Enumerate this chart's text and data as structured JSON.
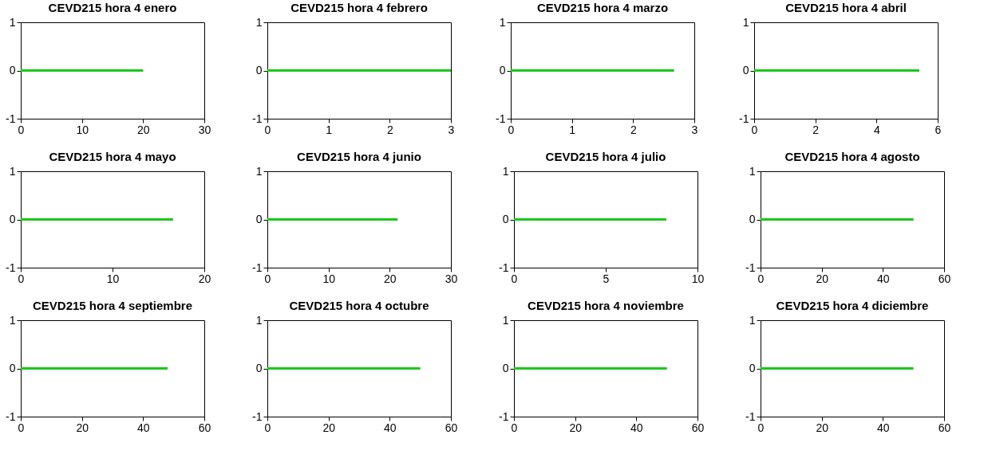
{
  "chart_data": [
    {
      "type": "line",
      "title": "CEVD215 hora 4 enero",
      "series": [
        {
          "color": "#19c819",
          "x": [
            0,
            20
          ],
          "values": [
            0,
            0
          ]
        }
      ],
      "xlim": [
        0,
        30
      ],
      "xticks": [
        0,
        10,
        20,
        30
      ],
      "ylim": [
        -1,
        1
      ],
      "yticks": [
        -1,
        0,
        1
      ],
      "grid": false
    },
    {
      "type": "line",
      "title": "CEVD215 hora 4 febrero",
      "series": [
        {
          "color": "#19c819",
          "x": [
            0,
            3
          ],
          "values": [
            0,
            0
          ]
        }
      ],
      "xlim": [
        0,
        3
      ],
      "xticks": [
        0,
        1,
        2,
        3
      ],
      "ylim": [
        -1,
        1
      ],
      "yticks": [
        -1,
        0,
        1
      ],
      "grid": false
    },
    {
      "type": "line",
      "title": "CEVD215 hora 4 marzo",
      "series": [
        {
          "color": "#19c819",
          "x": [
            0,
            2.67
          ],
          "values": [
            0,
            0
          ]
        }
      ],
      "xlim": [
        0,
        3
      ],
      "xticks": [
        0,
        1,
        2,
        3
      ],
      "ylim": [
        -1,
        1
      ],
      "yticks": [
        -1,
        0,
        1
      ],
      "grid": false
    },
    {
      "type": "line",
      "title": "CEVD215 hora 4 abril",
      "series": [
        {
          "color": "#19c819",
          "x": [
            0,
            5.4
          ],
          "values": [
            0,
            0
          ]
        }
      ],
      "xlim": [
        0,
        6
      ],
      "xticks": [
        0,
        2,
        4,
        6
      ],
      "ylim": [
        -1,
        1
      ],
      "yticks": [
        -1,
        0,
        1
      ],
      "grid": false
    },
    {
      "type": "line",
      "title": "CEVD215 hora 4 mayo",
      "series": [
        {
          "color": "#19c819",
          "x": [
            0,
            16.6
          ],
          "values": [
            0,
            0
          ]
        }
      ],
      "xlim": [
        0,
        20
      ],
      "xticks": [
        0,
        10,
        20
      ],
      "ylim": [
        -1,
        1
      ],
      "yticks": [
        -1,
        0,
        1
      ],
      "grid": false
    },
    {
      "type": "line",
      "title": "CEVD215 hora 4 junio",
      "series": [
        {
          "color": "#19c819",
          "x": [
            0,
            21.3
          ],
          "values": [
            0,
            0
          ]
        }
      ],
      "xlim": [
        0,
        30
      ],
      "xticks": [
        0,
        10,
        20,
        30
      ],
      "ylim": [
        -1,
        1
      ],
      "yticks": [
        -1,
        0,
        1
      ],
      "grid": false
    },
    {
      "type": "line",
      "title": "CEVD215 hora 4 julio",
      "series": [
        {
          "color": "#19c819",
          "x": [
            0,
            8.3
          ],
          "values": [
            0,
            0
          ]
        }
      ],
      "xlim": [
        0,
        10
      ],
      "xticks": [
        0,
        5,
        10
      ],
      "ylim": [
        -1,
        1
      ],
      "yticks": [
        -1,
        0,
        1
      ],
      "grid": false
    },
    {
      "type": "line",
      "title": "CEVD215 hora 4 agosto",
      "series": [
        {
          "color": "#19c819",
          "x": [
            0,
            50
          ],
          "values": [
            0,
            0
          ]
        }
      ],
      "xlim": [
        0,
        60
      ],
      "xticks": [
        0,
        20,
        40,
        60
      ],
      "ylim": [
        -1,
        1
      ],
      "yticks": [
        -1,
        0,
        1
      ],
      "grid": false
    },
    {
      "type": "line",
      "title": "CEVD215 hora 4 septiembre",
      "series": [
        {
          "color": "#19c819",
          "x": [
            0,
            48
          ],
          "values": [
            0,
            0
          ]
        }
      ],
      "xlim": [
        0,
        60
      ],
      "xticks": [
        0,
        20,
        40,
        60
      ],
      "ylim": [
        -1,
        1
      ],
      "yticks": [
        -1,
        0,
        1
      ],
      "grid": false
    },
    {
      "type": "line",
      "title": "CEVD215 hora 4 octubre",
      "series": [
        {
          "color": "#19c819",
          "x": [
            0,
            50
          ],
          "values": [
            0,
            0
          ]
        }
      ],
      "xlim": [
        0,
        60
      ],
      "xticks": [
        0,
        20,
        40,
        60
      ],
      "ylim": [
        -1,
        1
      ],
      "yticks": [
        -1,
        0,
        1
      ],
      "grid": false
    },
    {
      "type": "line",
      "title": "CEVD215 hora 4 noviembre",
      "series": [
        {
          "color": "#19c819",
          "x": [
            0,
            50
          ],
          "values": [
            0,
            0
          ]
        }
      ],
      "xlim": [
        0,
        60
      ],
      "xticks": [
        0,
        20,
        40,
        60
      ],
      "ylim": [
        -1,
        1
      ],
      "yticks": [
        -1,
        0,
        1
      ],
      "grid": false
    },
    {
      "type": "line",
      "title": "CEVD215 hora 4 diciembre",
      "series": [
        {
          "color": "#19c819",
          "x": [
            0,
            50
          ],
          "values": [
            0,
            0
          ]
        }
      ],
      "xlim": [
        0,
        60
      ],
      "xticks": [
        0,
        20,
        40,
        60
      ],
      "ylim": [
        -1,
        1
      ],
      "yticks": [
        -1,
        0,
        1
      ],
      "grid": false
    }
  ]
}
